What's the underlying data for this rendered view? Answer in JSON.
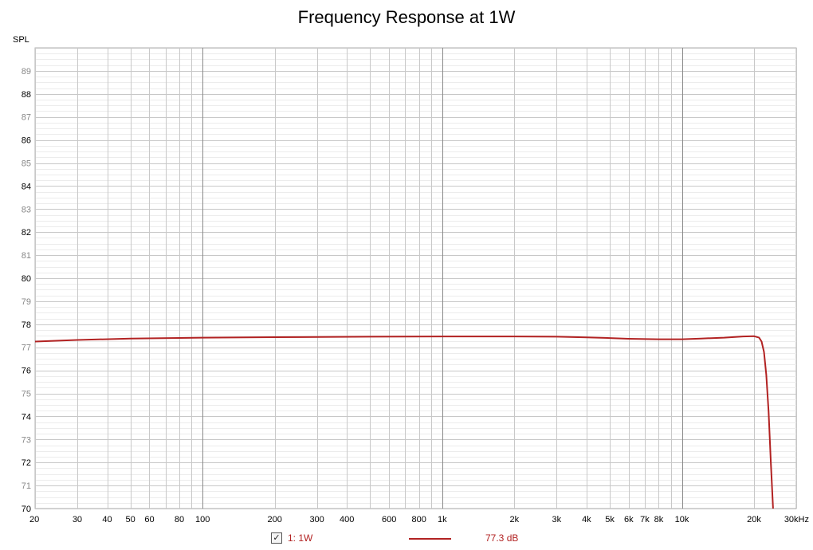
{
  "chart_data": {
    "type": "line",
    "title": "Frequency Response at 1W",
    "ylabel": "SPL",
    "xlabel": "",
    "x_scale": "log",
    "xlim": [
      20,
      30000
    ],
    "ylim": [
      70,
      90
    ],
    "grid": true,
    "x_ticks": [
      {
        "v": 20,
        "label": "20"
      },
      {
        "v": 30,
        "label": "30"
      },
      {
        "v": 40,
        "label": "40"
      },
      {
        "v": 50,
        "label": "50"
      },
      {
        "v": 60,
        "label": "60"
      },
      {
        "v": 80,
        "label": "80"
      },
      {
        "v": 100,
        "label": "100"
      },
      {
        "v": 200,
        "label": "200"
      },
      {
        "v": 300,
        "label": "300"
      },
      {
        "v": 400,
        "label": "400"
      },
      {
        "v": 600,
        "label": "600"
      },
      {
        "v": 800,
        "label": "800"
      },
      {
        "v": 1000,
        "label": "1k"
      },
      {
        "v": 2000,
        "label": "2k"
      },
      {
        "v": 3000,
        "label": "3k"
      },
      {
        "v": 4000,
        "label": "4k"
      },
      {
        "v": 5000,
        "label": "5k"
      },
      {
        "v": 6000,
        "label": "6k"
      },
      {
        "v": 7000,
        "label": "7k"
      },
      {
        "v": 8000,
        "label": "8k"
      },
      {
        "v": 10000,
        "label": "10k"
      },
      {
        "v": 20000,
        "label": "20k"
      },
      {
        "v": 30000,
        "label": "30kHz"
      }
    ],
    "y_ticks": [
      70,
      71,
      72,
      73,
      74,
      75,
      76,
      77,
      78,
      79,
      80,
      81,
      82,
      83,
      84,
      85,
      86,
      87,
      88,
      89
    ],
    "series": [
      {
        "name": "1: 1W",
        "color": "#b22222",
        "x": [
          20,
          30,
          50,
          100,
          200,
          500,
          1000,
          2000,
          3000,
          4000,
          5000,
          6000,
          8000,
          10000,
          12000,
          15000,
          18000,
          20000,
          21000,
          21500,
          22000,
          22500,
          23000,
          23500,
          24000
        ],
        "y": [
          77.25,
          77.32,
          77.38,
          77.42,
          77.44,
          77.46,
          77.47,
          77.47,
          77.46,
          77.43,
          77.4,
          77.37,
          77.35,
          77.35,
          77.38,
          77.42,
          77.47,
          77.48,
          77.42,
          77.25,
          76.8,
          75.8,
          74.2,
          72.0,
          70.0
        ]
      }
    ]
  },
  "legend": {
    "checkbox": "✓",
    "label": "1: 1W",
    "value": "77.3 dB"
  }
}
